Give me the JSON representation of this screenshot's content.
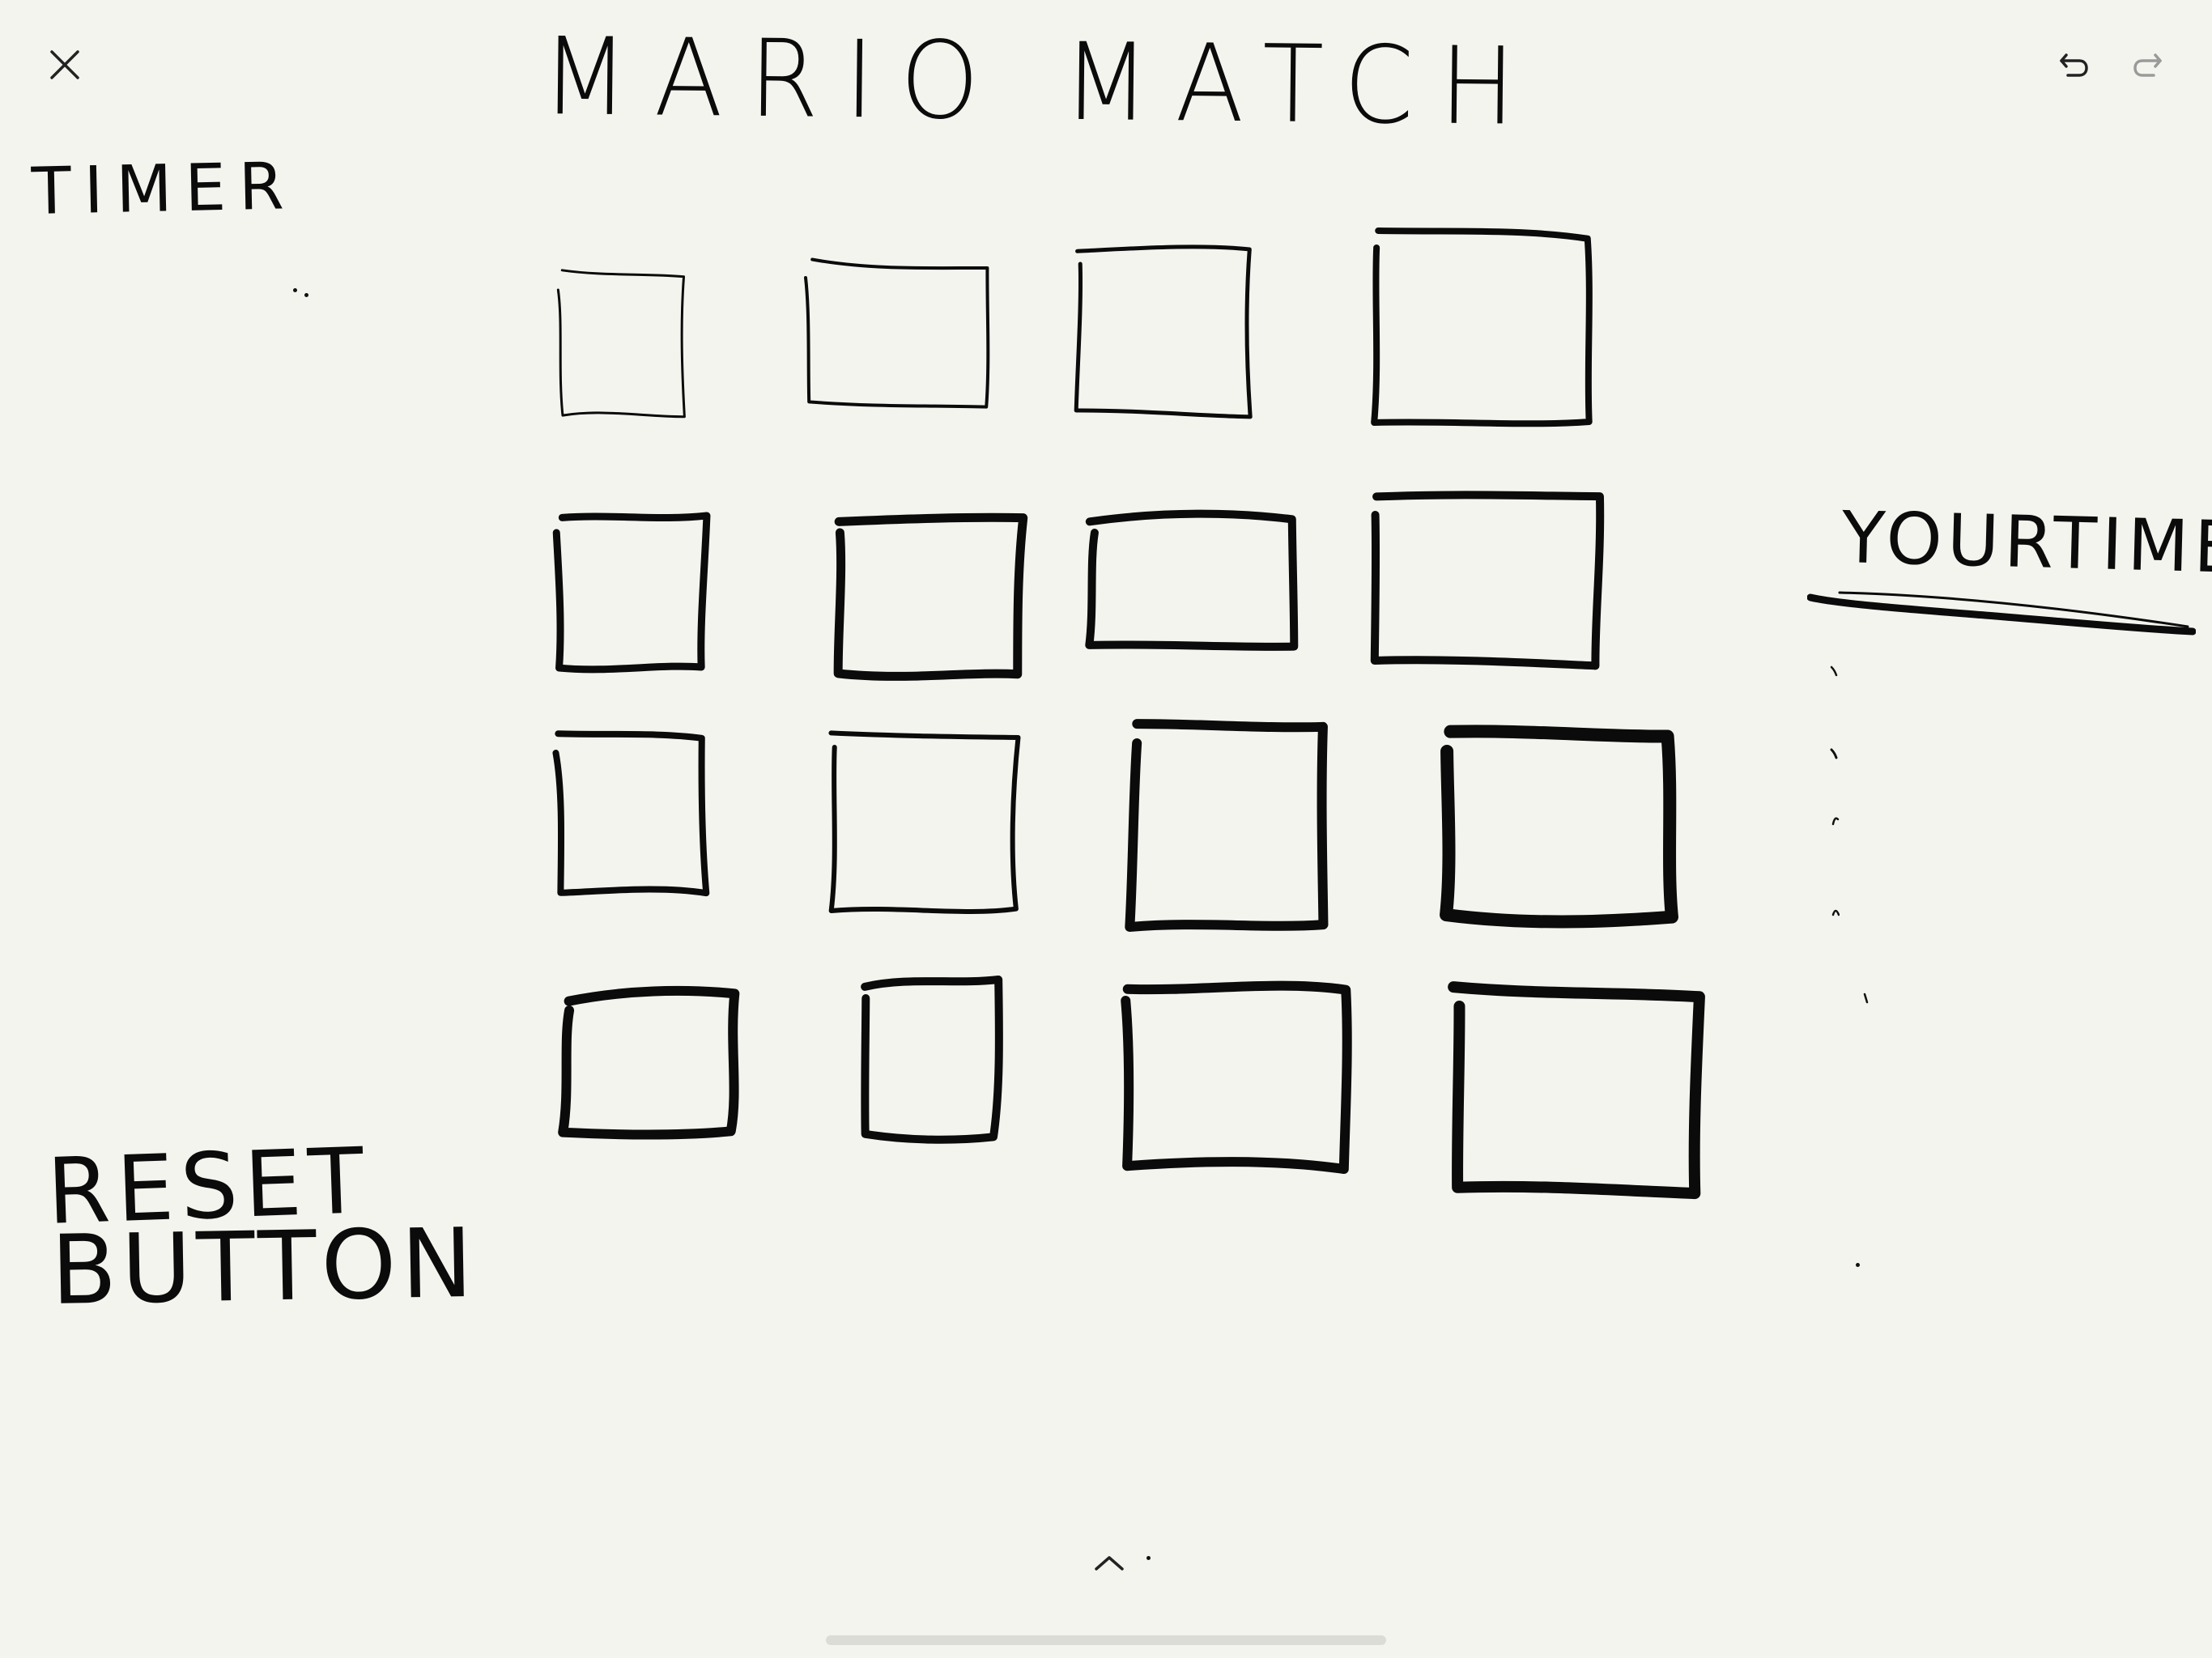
{
  "toolbar": {
    "close_icon": "close-icon",
    "undo_icon": "undo-icon",
    "redo_icon": "redo-icon"
  },
  "sketch": {
    "title": "MARIO MATCH",
    "timer_label": "TIMER",
    "your_times_label": "YOURTIMES",
    "reset_button_line_1": "RESET",
    "reset_button_line_2": "BUTTON"
  },
  "grid": {
    "rows": 4,
    "columns": 4,
    "card_count": 16
  },
  "colors": {
    "canvas": "#f4f4ef",
    "ink": "#0b0b0b",
    "toolbar_icon": "#222222",
    "redo_disabled": "#9a9a9a",
    "home_indicator": "#dcdcd7"
  }
}
